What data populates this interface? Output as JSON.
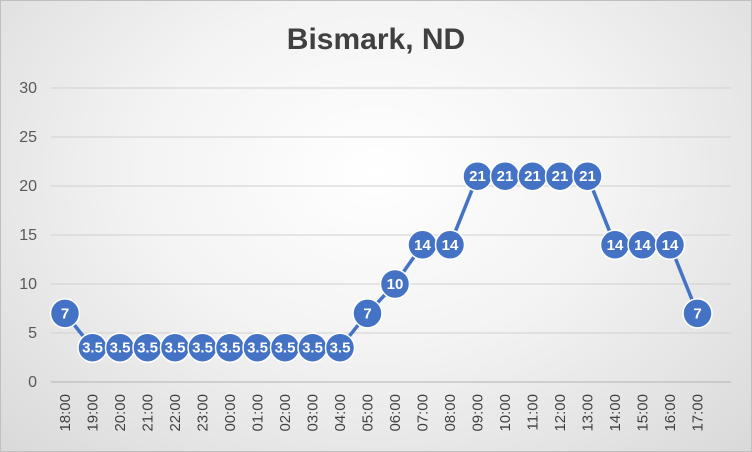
{
  "chart_data": {
    "type": "line",
    "title": "Bismark, ND",
    "xlabel": "",
    "ylabel": "",
    "categories": [
      "18:00",
      "19:00",
      "20:00",
      "21:00",
      "22:00",
      "23:00",
      "00:00",
      "01:00",
      "02:00",
      "03:00",
      "04:00",
      "05:00",
      "06:00",
      "07:00",
      "08:00",
      "09:00",
      "10:00",
      "11:00",
      "12:00",
      "13:00",
      "14:00",
      "15:00",
      "16:00",
      "17:00"
    ],
    "series": [
      {
        "values": [
          7,
          3.5,
          3.5,
          3.5,
          3.5,
          3.5,
          3.5,
          3.5,
          3.5,
          3.5,
          3.5,
          7,
          10,
          14,
          14,
          21,
          21,
          21,
          21,
          21,
          14,
          14,
          14,
          7
        ],
        "color": "#4472c4"
      }
    ],
    "ylim": [
      0,
      30
    ],
    "yticks": [
      0,
      5,
      10,
      15,
      20,
      25,
      30
    ],
    "grid": true,
    "legend": "none",
    "data_labels": true
  }
}
